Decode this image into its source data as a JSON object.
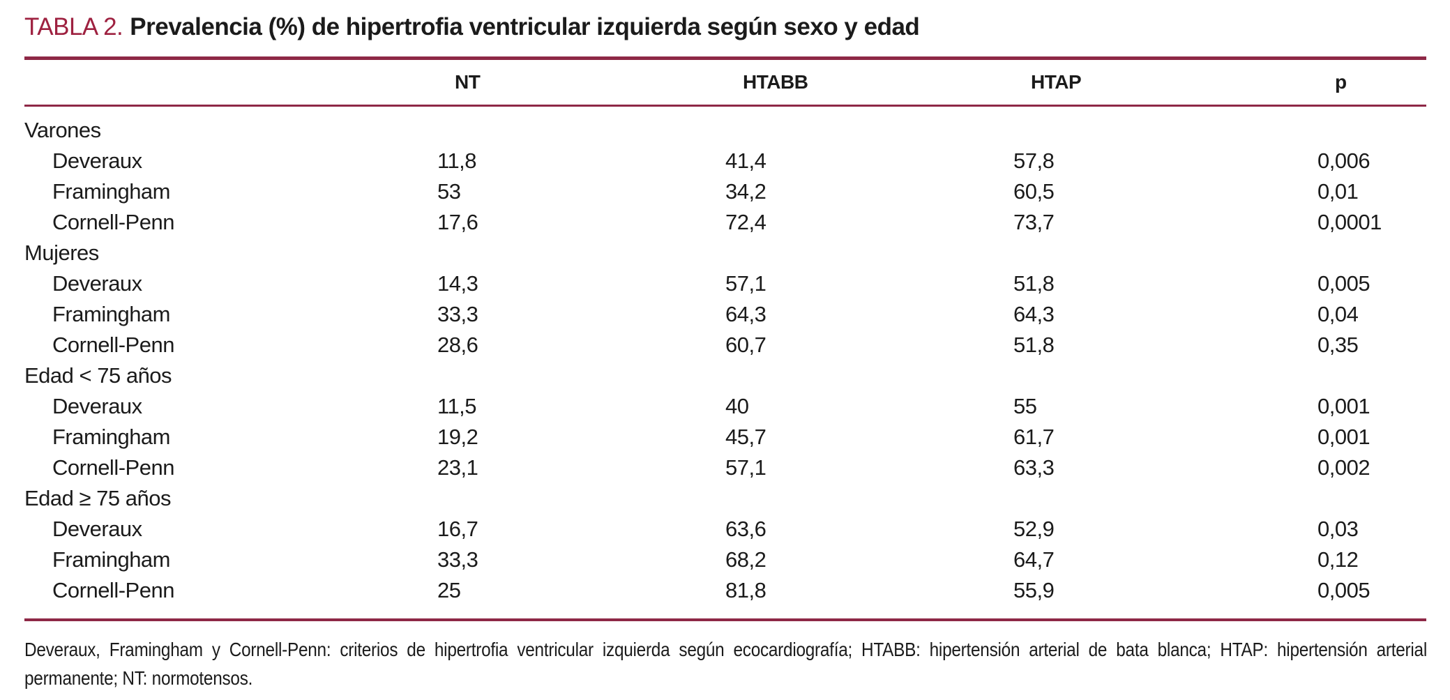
{
  "title": {
    "label": "TABLA 2.",
    "text": "Prevalencia (%) de hipertrofia ventricular izquierda según sexo y edad"
  },
  "table": {
    "columns": [
      "",
      "NT",
      "HTABB",
      "HTAP",
      "p"
    ],
    "groups": [
      {
        "label": "Varones",
        "rows": [
          {
            "label": "Deveraux",
            "nt": "11,8",
            "htabb": "41,4",
            "htap": "57,8",
            "p": "0,006"
          },
          {
            "label": "Framingham",
            "nt": "53",
            "htabb": "34,2",
            "htap": "60,5",
            "p": "0,01"
          },
          {
            "label": "Cornell-Penn",
            "nt": "17,6",
            "htabb": "72,4",
            "htap": "73,7",
            "p": "0,0001"
          }
        ]
      },
      {
        "label": "Mujeres",
        "rows": [
          {
            "label": "Deveraux",
            "nt": "14,3",
            "htabb": "57,1",
            "htap": "51,8",
            "p": "0,005"
          },
          {
            "label": "Framingham",
            "nt": "33,3",
            "htabb": "64,3",
            "htap": "64,3",
            "p": "0,04"
          },
          {
            "label": "Cornell-Penn",
            "nt": "28,6",
            "htabb": "60,7",
            "htap": "51,8",
            "p": "0,35"
          }
        ]
      },
      {
        "label": "Edad < 75 años",
        "rows": [
          {
            "label": "Deveraux",
            "nt": "11,5",
            "htabb": "40",
            "htap": "55",
            "p": "0,001"
          },
          {
            "label": "Framingham",
            "nt": "19,2",
            "htabb": "45,7",
            "htap": "61,7",
            "p": "0,001"
          },
          {
            "label": "Cornell-Penn",
            "nt": "23,1",
            "htabb": "57,1",
            "htap": "63,3",
            "p": "0,002"
          }
        ]
      },
      {
        "label": "Edad ≥ 75 años",
        "rows": [
          {
            "label": "Deveraux",
            "nt": "16,7",
            "htabb": "63,6",
            "htap": "52,9",
            "p": "0,03"
          },
          {
            "label": "Framingham",
            "nt": "33,3",
            "htabb": "68,2",
            "htap": "64,7",
            "p": "0,12"
          },
          {
            "label": "Cornell-Penn",
            "nt": "25",
            "htabb": "81,8",
            "htap": "55,9",
            "p": "0,005"
          }
        ]
      }
    ]
  },
  "footnote": "Deveraux, Framingham y Cornell-Penn: criterios de hipertrofia ventricular izquierda según ecocardiografía; HTABB: hipertensión arterial de bata blanca; HTAP: hipertensión arterial permanente; NT: normotensos.",
  "colors": {
    "accent_maroon": "#9e2140",
    "rule_maroon": "#8e2846",
    "text": "#1b1b1b"
  }
}
